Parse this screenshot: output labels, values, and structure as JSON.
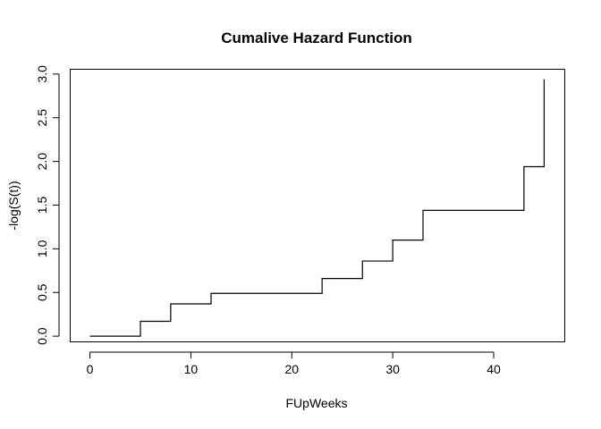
{
  "chart_data": {
    "type": "line",
    "step": true,
    "title": "Cumalive Hazard Function",
    "xlabel": "FUpWeeks",
    "ylabel": "-log(S(t))",
    "xlim": [
      -2,
      47
    ],
    "ylim": [
      -0.06,
      3.06
    ],
    "x_ticks": [
      0,
      10,
      20,
      30,
      40
    ],
    "x_tick_labels": [
      "0",
      "10",
      "20",
      "30",
      "40"
    ],
    "y_ticks": [
      0.0,
      0.5,
      1.0,
      1.5,
      2.0,
      2.5,
      3.0
    ],
    "y_tick_labels": [
      "0.0",
      "0.5",
      "1.0",
      "1.5",
      "2.0",
      "2.5",
      "3.0"
    ],
    "grid": false,
    "series": [
      {
        "x": [
          0,
          5,
          8,
          12,
          23,
          27,
          30,
          33,
          43,
          45
        ],
        "y": [
          0.0,
          0.17,
          0.37,
          0.49,
          0.66,
          0.86,
          1.1,
          1.44,
          1.94,
          2.94
        ]
      }
    ],
    "colors": {
      "line": "#000000",
      "background": "#ffffff"
    }
  }
}
